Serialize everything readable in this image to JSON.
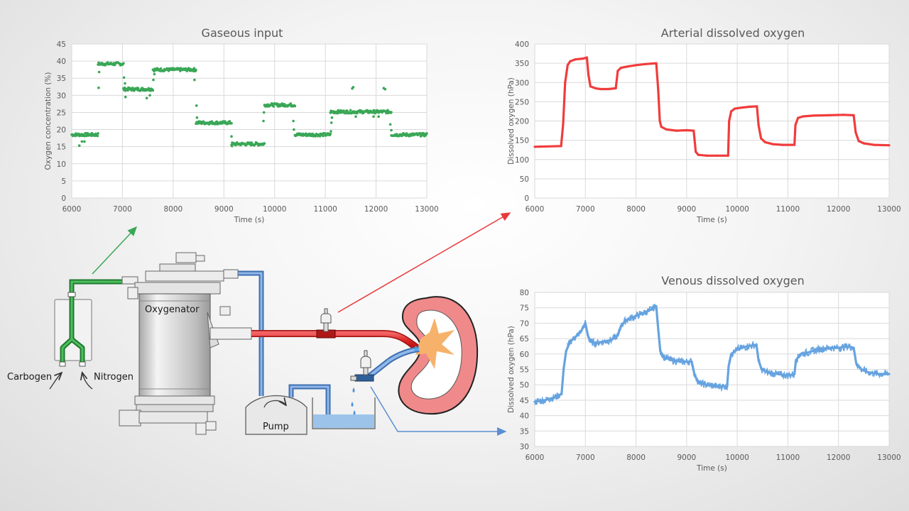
{
  "diagram": {
    "oxygenator_label": "Oxygenator",
    "pump_label": "Pump",
    "carbogen_label": "Carbogen",
    "nitrogen_label": "Nitrogen",
    "colors": {
      "gas": "#2f9a45",
      "arterial": "#e8383a",
      "venous": "#5b8fd3",
      "kidney": "#f08a8a"
    }
  },
  "chart_data": [
    {
      "id": "gaseous",
      "type": "scatter",
      "title": "Gaseous input",
      "xlabel": "Time (s)",
      "ylabel": "Oxygen concentration (%)",
      "xlim": [
        6000,
        13000
      ],
      "ylim": [
        0,
        45
      ],
      "xticks": [
        6000,
        7000,
        8000,
        9000,
        10000,
        11000,
        12000,
        13000
      ],
      "yticks": [
        0,
        5,
        10,
        15,
        20,
        25,
        30,
        35,
        40,
        45
      ],
      "grid": true,
      "color": "#3aa757",
      "segments": [
        {
          "x": [
            6000,
            6520
          ],
          "y": 18.5
        },
        {
          "x": [
            6520,
            7020
          ],
          "y": 39.2
        },
        {
          "x": [
            7020,
            7600
          ],
          "y": 31.8
        },
        {
          "x": [
            7600,
            8450
          ],
          "y": 37.5
        },
        {
          "x": [
            8450,
            9150
          ],
          "y": 22.0
        },
        {
          "x": [
            9150,
            9800
          ],
          "y": 15.8
        },
        {
          "x": [
            9800,
            10400
          ],
          "y": 27.2
        },
        {
          "x": [
            10400,
            11100
          ],
          "y": 18.5
        },
        {
          "x": [
            11100,
            12300
          ],
          "y": 25.2
        },
        {
          "x": [
            12300,
            13000
          ],
          "y": 18.5
        }
      ],
      "outliers": [
        {
          "x": 6150,
          "y": 15.3
        },
        {
          "x": 6200,
          "y": 16.5
        },
        {
          "x": 6250,
          "y": 16.5
        },
        {
          "x": 6530,
          "y": 32.2
        },
        {
          "x": 6540,
          "y": 36.8
        },
        {
          "x": 7030,
          "y": 35.2
        },
        {
          "x": 7060,
          "y": 29.5
        },
        {
          "x": 7050,
          "y": 33.5
        },
        {
          "x": 7480,
          "y": 29.2
        },
        {
          "x": 7540,
          "y": 30.0
        },
        {
          "x": 7610,
          "y": 34.5
        },
        {
          "x": 7630,
          "y": 36.2
        },
        {
          "x": 8420,
          "y": 34.5
        },
        {
          "x": 8460,
          "y": 27.0
        },
        {
          "x": 8470,
          "y": 23.5
        },
        {
          "x": 9150,
          "y": 18.0
        },
        {
          "x": 9160,
          "y": 15.2
        },
        {
          "x": 9780,
          "y": 22.5
        },
        {
          "x": 9790,
          "y": 25.0
        },
        {
          "x": 10370,
          "y": 22.5
        },
        {
          "x": 10380,
          "y": 20.0
        },
        {
          "x": 11110,
          "y": 19.5
        },
        {
          "x": 11120,
          "y": 22.0
        },
        {
          "x": 11130,
          "y": 23.5
        },
        {
          "x": 11530,
          "y": 32.0
        },
        {
          "x": 11550,
          "y": 32.4
        },
        {
          "x": 11600,
          "y": 23.8
        },
        {
          "x": 11950,
          "y": 23.8
        },
        {
          "x": 12050,
          "y": 23.8
        },
        {
          "x": 12150,
          "y": 32.1
        },
        {
          "x": 12180,
          "y": 31.8
        },
        {
          "x": 12280,
          "y": 21.5
        },
        {
          "x": 12300,
          "y": 19.8
        }
      ]
    },
    {
      "id": "arterial",
      "type": "line",
      "title": "Arterial dissolved oxygen",
      "xlabel": "Time (s)",
      "ylabel": "Dissolved oxygen (hPa)",
      "xlim": [
        6000,
        13000
      ],
      "ylim": [
        0,
        400
      ],
      "xticks": [
        6000,
        7000,
        8000,
        9000,
        10000,
        11000,
        12000,
        13000
      ],
      "yticks": [
        0,
        50,
        100,
        150,
        200,
        250,
        300,
        350,
        400
      ],
      "grid": true,
      "color": "#f03c3c",
      "x": [
        6000,
        6520,
        6560,
        6600,
        6650,
        6700,
        6800,
        6950,
        7030,
        7060,
        7100,
        7200,
        7300,
        7450,
        7600,
        7640,
        7700,
        7850,
        8000,
        8200,
        8400,
        8440,
        8470,
        8500,
        8600,
        8800,
        9000,
        9140,
        9180,
        9230,
        9400,
        9600,
        9820,
        9840,
        9880,
        9950,
        10100,
        10250,
        10390,
        10420,
        10470,
        10550,
        10700,
        10900,
        11130,
        11150,
        11200,
        11300,
        11500,
        11800,
        12100,
        12300,
        12340,
        12400,
        12500,
        12700,
        13000
      ],
      "y": [
        133,
        135,
        190,
        300,
        345,
        355,
        360,
        362,
        365,
        320,
        290,
        285,
        283,
        283,
        285,
        330,
        338,
        342,
        345,
        348,
        350,
        280,
        200,
        185,
        178,
        175,
        176,
        175,
        120,
        112,
        110,
        110,
        110,
        200,
        225,
        232,
        235,
        237,
        238,
        190,
        155,
        145,
        140,
        138,
        138,
        190,
        208,
        212,
        214,
        215,
        216,
        215,
        170,
        148,
        142,
        138,
        137
      ]
    },
    {
      "id": "venous",
      "type": "line",
      "title": "Venous dissolved oxygen",
      "xlabel": "Time (s)",
      "ylabel": "Dissolved oxygen (hPa)",
      "xlim": [
        6000,
        13000
      ],
      "ylim": [
        30,
        80
      ],
      "xticks": [
        6000,
        7000,
        8000,
        9000,
        10000,
        11000,
        12000,
        13000
      ],
      "yticks": [
        30,
        35,
        40,
        45,
        50,
        55,
        60,
        65,
        70,
        75,
        80
      ],
      "grid": true,
      "color": "#66a3e0",
      "x": [
        6000,
        6200,
        6400,
        6530,
        6570,
        6620,
        6700,
        6800,
        6900,
        7000,
        7050,
        7100,
        7200,
        7350,
        7500,
        7640,
        7700,
        7800,
        7950,
        8100,
        8250,
        8400,
        8440,
        8480,
        8550,
        8700,
        8900,
        9100,
        9160,
        9250,
        9400,
        9600,
        9800,
        9830,
        9880,
        10000,
        10200,
        10380,
        10420,
        10480,
        10600,
        10800,
        11000,
        11130,
        11160,
        11250,
        11400,
        11600,
        11800,
        12000,
        12200,
        12300,
        12350,
        12450,
        12600,
        12800,
        13000
      ],
      "y": [
        44.5,
        45,
        46,
        47,
        55,
        61,
        64,
        65.5,
        67,
        70,
        66,
        64,
        63.5,
        64,
        64.5,
        66,
        69,
        71,
        72,
        73,
        74,
        75.5,
        68,
        61,
        59,
        58,
        57.5,
        57.5,
        53,
        50.5,
        50,
        49.5,
        49.5,
        56,
        60,
        61.5,
        62.5,
        63,
        58,
        55,
        54,
        53.5,
        53,
        53.5,
        58,
        60,
        60.5,
        61.5,
        62,
        62,
        62.5,
        62,
        57,
        55,
        54,
        53.5,
        53.5
      ],
      "noise": 1.2
    }
  ]
}
